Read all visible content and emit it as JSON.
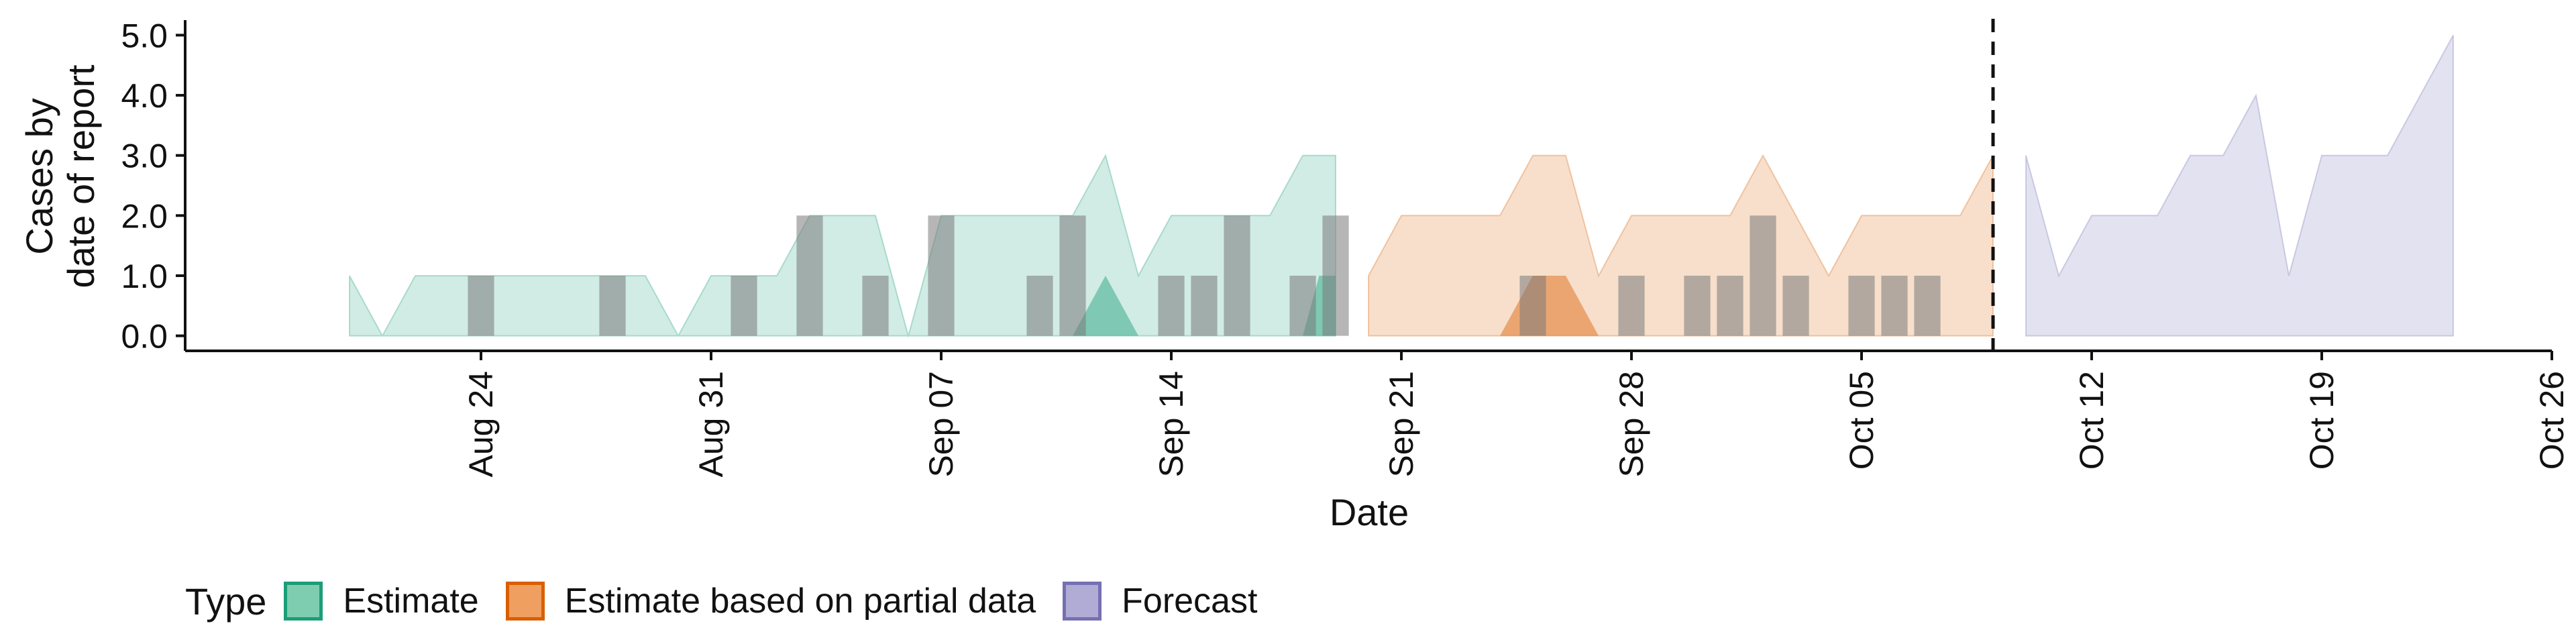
{
  "chart_data": {
    "type": "area",
    "xlabel": "Date",
    "ylabel_lines": [
      "Cases by",
      "date of report"
    ],
    "ylim": [
      -0.25,
      5.25
    ],
    "y_ticks": [
      0,
      1,
      2,
      3,
      4,
      5
    ],
    "y_tick_labels": [
      "0.0",
      "1.0",
      "2.0",
      "3.0",
      "4.0",
      "5.0"
    ],
    "x_range": [
      "2020-08-15",
      "2020-10-26"
    ],
    "x_ticks": [
      "2020-08-24",
      "2020-08-31",
      "2020-09-07",
      "2020-09-14",
      "2020-09-21",
      "2020-09-28",
      "2020-10-05",
      "2020-10-12",
      "2020-10-19",
      "2020-10-26"
    ],
    "x_tick_labels": [
      "Aug 24",
      "Aug 31",
      "Sep 07",
      "Sep 14",
      "Sep 21",
      "Sep 28",
      "Oct 05",
      "Oct 12",
      "Oct 19",
      "Oct 26"
    ],
    "forecast_line_date": "2020-10-09",
    "grid": false,
    "legend": {
      "title": "Type",
      "position": "bottom",
      "entries": [
        {
          "label": "Estimate",
          "fill": "#1b9e77",
          "fill_light": "#7fcdb0",
          "border": "#1b9e77"
        },
        {
          "label": "Estimate based on partial data",
          "fill": "#d95f02",
          "fill_light": "#ef9f60",
          "border": "#d95f02"
        },
        {
          "label": "Forecast",
          "fill": "#7570b3",
          "fill_light": "#b0acd6",
          "border": "#7570b3"
        }
      ]
    },
    "series": [
      {
        "name": "Estimate",
        "color": "#1b9e77",
        "outer_band": [
          [
            "2020-08-20",
            1
          ],
          [
            "2020-08-21",
            0
          ],
          [
            "2020-08-22",
            1
          ],
          [
            "2020-08-23",
            1
          ],
          [
            "2020-08-24",
            1
          ],
          [
            "2020-08-25",
            1
          ],
          [
            "2020-08-26",
            1
          ],
          [
            "2020-08-27",
            1
          ],
          [
            "2020-08-28",
            1
          ],
          [
            "2020-08-29",
            1
          ],
          [
            "2020-08-30",
            0
          ],
          [
            "2020-08-31",
            1
          ],
          [
            "2020-09-01",
            1
          ],
          [
            "2020-09-02",
            1
          ],
          [
            "2020-09-03",
            2
          ],
          [
            "2020-09-04",
            2
          ],
          [
            "2020-09-05",
            2
          ],
          [
            "2020-09-06",
            0
          ],
          [
            "2020-09-07",
            2
          ],
          [
            "2020-09-08",
            2
          ],
          [
            "2020-09-09",
            2
          ],
          [
            "2020-09-10",
            2
          ],
          [
            "2020-09-11",
            2
          ],
          [
            "2020-09-12",
            3
          ],
          [
            "2020-09-13",
            1
          ],
          [
            "2020-09-14",
            2
          ],
          [
            "2020-09-15",
            2
          ],
          [
            "2020-09-16",
            2
          ],
          [
            "2020-09-17",
            2
          ],
          [
            "2020-09-18",
            3
          ],
          [
            "2020-09-19",
            3
          ]
        ],
        "inner_band": [
          [
            "2020-09-11",
            0
          ],
          [
            "2020-09-12",
            1
          ],
          [
            "2020-09-13",
            0
          ],
          [
            "2020-09-18",
            0
          ],
          [
            "2020-09-18.5",
            1
          ],
          [
            "2020-09-19",
            1
          ]
        ]
      },
      {
        "name": "Estimate based on partial data",
        "color": "#d95f02",
        "outer_band": [
          [
            "2020-09-20",
            1
          ],
          [
            "2020-09-21",
            2
          ],
          [
            "2020-09-22",
            2
          ],
          [
            "2020-09-23",
            2
          ],
          [
            "2020-09-24",
            2
          ],
          [
            "2020-09-25",
            3
          ],
          [
            "2020-09-26",
            3
          ],
          [
            "2020-09-27",
            1
          ],
          [
            "2020-09-28",
            2
          ],
          [
            "2020-09-29",
            2
          ],
          [
            "2020-09-30",
            2
          ],
          [
            "2020-10-01",
            2
          ],
          [
            "2020-10-02",
            3
          ],
          [
            "2020-10-03",
            2
          ],
          [
            "2020-10-04",
            1
          ],
          [
            "2020-10-05",
            2
          ],
          [
            "2020-10-06",
            2
          ],
          [
            "2020-10-07",
            2
          ],
          [
            "2020-10-08",
            2
          ],
          [
            "2020-10-09",
            3
          ]
        ],
        "inner_band": [
          [
            "2020-09-24",
            0
          ],
          [
            "2020-09-25",
            1
          ],
          [
            "2020-09-26",
            1
          ],
          [
            "2020-09-27",
            0
          ]
        ]
      },
      {
        "name": "Forecast",
        "color": "#7570b3",
        "outer_band": [
          [
            "2020-10-10",
            3
          ],
          [
            "2020-10-11",
            1
          ],
          [
            "2020-10-12",
            2
          ],
          [
            "2020-10-13",
            2
          ],
          [
            "2020-10-14",
            2
          ],
          [
            "2020-10-15",
            3
          ],
          [
            "2020-10-16",
            3
          ],
          [
            "2020-10-17",
            4
          ],
          [
            "2020-10-18",
            1
          ],
          [
            "2020-10-19",
            3
          ],
          [
            "2020-10-20",
            3
          ],
          [
            "2020-10-21",
            3
          ],
          [
            "2020-10-22",
            4
          ],
          [
            "2020-10-23",
            5
          ]
        ]
      }
    ],
    "reported_cases": [
      {
        "date": "2020-08-24",
        "value": 1
      },
      {
        "date": "2020-08-28",
        "value": 1
      },
      {
        "date": "2020-09-01",
        "value": 1
      },
      {
        "date": "2020-09-03",
        "value": 2
      },
      {
        "date": "2020-09-05",
        "value": 1
      },
      {
        "date": "2020-09-07",
        "value": 2
      },
      {
        "date": "2020-09-10",
        "value": 1
      },
      {
        "date": "2020-09-11",
        "value": 2
      },
      {
        "date": "2020-09-14",
        "value": 1
      },
      {
        "date": "2020-09-15",
        "value": 1
      },
      {
        "date": "2020-09-16",
        "value": 2
      },
      {
        "date": "2020-09-18",
        "value": 1
      },
      {
        "date": "2020-09-19",
        "value": 2
      },
      {
        "date": "2020-09-25",
        "value": 1
      },
      {
        "date": "2020-09-28",
        "value": 1
      },
      {
        "date": "2020-09-30",
        "value": 1
      },
      {
        "date": "2020-10-01",
        "value": 1
      },
      {
        "date": "2020-10-02",
        "value": 2
      },
      {
        "date": "2020-10-03",
        "value": 1
      },
      {
        "date": "2020-10-05",
        "value": 1
      },
      {
        "date": "2020-10-06",
        "value": 1
      },
      {
        "date": "2020-10-07",
        "value": 1
      }
    ]
  }
}
